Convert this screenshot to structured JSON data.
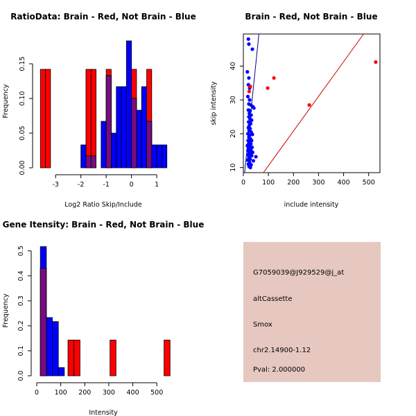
{
  "colors": {
    "red": "#ff0000",
    "blue": "#0000ff",
    "overlap": "#7a0a82",
    "fit_red": "#cc0000",
    "fit_blue": "#000080",
    "info_bg": "#e6c8c0",
    "pval": "#cc0000"
  },
  "chart_data": [
    {
      "type": "bar",
      "title": "RatioData: Brain - Red, Not Brain - Blue",
      "xlabel": "Log2 Ratio Skip/Include",
      "ylabel": "Frequency",
      "xlim": [
        -3.8,
        1.6
      ],
      "ylim": [
        0,
        0.19
      ],
      "xticks": [
        -3,
        -2,
        -1,
        0,
        1
      ],
      "yticks": [
        0.0,
        0.05,
        0.1,
        0.15
      ],
      "ytick_labels": [
        "0.00",
        "0.05",
        "0.10",
        "0.15"
      ],
      "series": [
        {
          "name": "Brain",
          "color_key": "red",
          "bars": [
            {
              "x0": -3.6,
              "x1": -3.4,
              "v": 0.142
            },
            {
              "x0": -3.4,
              "x1": -3.2,
              "v": 0.142
            },
            {
              "x0": -1.8,
              "x1": -1.6,
              "v": 0.142
            },
            {
              "x0": -1.6,
              "x1": -1.4,
              "v": 0.142
            },
            {
              "x0": -1.0,
              "x1": -0.8,
              "v": 0.142
            },
            {
              "x0": 0.0,
              "x1": 0.2,
              "v": 0.142
            },
            {
              "x0": 0.6,
              "x1": 0.8,
              "v": 0.142
            }
          ]
        },
        {
          "name": "Not Brain",
          "color_key": "blue",
          "bars": [
            {
              "x0": -2.0,
              "x1": -1.8,
              "v": 0.033
            },
            {
              "x0": -1.8,
              "x1": -1.6,
              "v": 0.017
            },
            {
              "x0": -1.6,
              "x1": -1.4,
              "v": 0.017
            },
            {
              "x0": -1.2,
              "x1": -1.0,
              "v": 0.067
            },
            {
              "x0": -1.0,
              "x1": -0.8,
              "v": 0.133
            },
            {
              "x0": -0.8,
              "x1": -0.6,
              "v": 0.05
            },
            {
              "x0": -0.6,
              "x1": -0.4,
              "v": 0.117
            },
            {
              "x0": -0.4,
              "x1": -0.2,
              "v": 0.117
            },
            {
              "x0": -0.2,
              "x1": 0.0,
              "v": 0.183
            },
            {
              "x0": 0.0,
              "x1": 0.2,
              "v": 0.1
            },
            {
              "x0": 0.2,
              "x1": 0.4,
              "v": 0.083
            },
            {
              "x0": 0.4,
              "x1": 0.6,
              "v": 0.117
            },
            {
              "x0": 0.6,
              "x1": 0.8,
              "v": 0.067
            },
            {
              "x0": 0.8,
              "x1": 1.0,
              "v": 0.033
            },
            {
              "x0": 1.0,
              "x1": 1.2,
              "v": 0.033
            },
            {
              "x0": 1.2,
              "x1": 1.4,
              "v": 0.033
            }
          ]
        }
      ]
    },
    {
      "type": "scatter",
      "title": "Brain - Red, Not Brain - Blue",
      "xlabel": "include intensity",
      "ylabel": "skip intensity",
      "xlim": [
        0,
        545
      ],
      "ylim": [
        8.5,
        49.5
      ],
      "xticks": [
        0,
        100,
        200,
        300,
        400,
        500
      ],
      "yticks": [
        10,
        20,
        30,
        40
      ],
      "fit_lines": [
        {
          "name": "Not Brain fit",
          "color_key": "fit_blue",
          "x": [
            5,
            62
          ],
          "y": [
            8.5,
            49.5
          ]
        },
        {
          "name": "Brain fit",
          "color_key": "fit_red",
          "x": [
            80,
            480
          ],
          "y": [
            8.5,
            49.5
          ]
        }
      ],
      "series": [
        {
          "name": "Brain",
          "color_key": "red",
          "points": [
            [
              28,
              34
            ],
            [
              23,
              32.5
            ],
            [
              97,
              33.5
            ],
            [
              122,
              36.5
            ],
            [
              263,
              28.5
            ],
            [
              528,
              41.2
            ]
          ]
        },
        {
          "name": "Not Brain",
          "color_key": "blue",
          "points": [
            [
              20,
              48
            ],
            [
              22,
              46.5
            ],
            [
              36,
              45
            ],
            [
              16,
              38.3
            ],
            [
              22,
              36.5
            ],
            [
              20,
              34.5
            ],
            [
              25,
              33.5
            ],
            [
              18,
              31
            ],
            [
              25,
              30
            ],
            [
              22,
              28.8
            ],
            [
              30,
              28.5
            ],
            [
              38,
              28
            ],
            [
              42,
              27.6
            ],
            [
              20,
              27
            ],
            [
              27,
              26.8
            ],
            [
              24,
              26
            ],
            [
              31,
              25.5
            ],
            [
              22,
              25
            ],
            [
              26,
              24.5
            ],
            [
              33,
              24
            ],
            [
              21,
              23.5
            ],
            [
              29,
              23
            ],
            [
              24,
              22.5
            ],
            [
              20,
              21.8
            ],
            [
              27,
              21.5
            ],
            [
              23,
              21
            ],
            [
              31,
              20.5
            ],
            [
              18,
              20
            ],
            [
              25,
              19.5
            ],
            [
              36,
              19.8
            ],
            [
              22,
              19
            ],
            [
              28,
              18.5
            ],
            [
              19,
              18
            ],
            [
              33,
              18
            ],
            [
              26,
              17.5
            ],
            [
              21,
              17
            ],
            [
              30,
              17
            ],
            [
              16,
              16.5
            ],
            [
              24,
              16.5
            ],
            [
              35,
              16
            ],
            [
              20,
              15.8
            ],
            [
              28,
              15.5
            ],
            [
              18,
              15
            ],
            [
              31,
              15
            ],
            [
              23,
              14.6
            ],
            [
              37,
              14.5
            ],
            [
              26,
              14
            ],
            [
              19,
              13.8
            ],
            [
              33,
              13.5
            ],
            [
              22,
              13
            ],
            [
              27,
              12.5
            ],
            [
              17,
              12.2
            ],
            [
              40,
              12
            ],
            [
              25,
              11.5
            ],
            [
              20,
              11
            ],
            [
              31,
              10.8
            ],
            [
              23,
              10.3
            ],
            [
              28,
              10
            ],
            [
              50,
              13.2
            ]
          ]
        }
      ]
    },
    {
      "type": "bar",
      "title": "Gene Itensity: Brain - Red, Not Brain - Blue",
      "xlabel": "Intensity",
      "ylabel": "Frequency",
      "xlim": [
        0,
        560
      ],
      "ylim": [
        0,
        0.53
      ],
      "xticks": [
        0,
        100,
        200,
        300,
        400,
        500
      ],
      "yticks": [
        0.0,
        0.1,
        0.2,
        0.3,
        0.4,
        0.5
      ],
      "ytick_labels": [
        "0.0",
        "0.1",
        "0.2",
        "0.3",
        "0.4",
        "0.5"
      ],
      "series": [
        {
          "name": "Brain",
          "color_key": "red",
          "bars": [
            {
              "x0": 15,
              "x1": 40,
              "v": 0.43
            },
            {
              "x0": 130,
              "x1": 155,
              "v": 0.143
            },
            {
              "x0": 155,
              "x1": 180,
              "v": 0.143
            },
            {
              "x0": 305,
              "x1": 330,
              "v": 0.143
            },
            {
              "x0": 530,
              "x1": 555,
              "v": 0.143
            }
          ]
        },
        {
          "name": "Not Brain",
          "color_key": "blue",
          "bars": [
            {
              "x0": 15,
              "x1": 40,
              "v": 0.517
            },
            {
              "x0": 40,
              "x1": 65,
              "v": 0.233
            },
            {
              "x0": 65,
              "x1": 90,
              "v": 0.217
            },
            {
              "x0": 90,
              "x1": 115,
              "v": 0.033
            }
          ]
        }
      ]
    }
  ],
  "info_panel": {
    "probe_id": "G7059039@J929529@j_at",
    "event_type": "altCassette",
    "gene": "Smox",
    "location": "chr2.14900-1.12",
    "pval": "Pval: 2.000000"
  }
}
